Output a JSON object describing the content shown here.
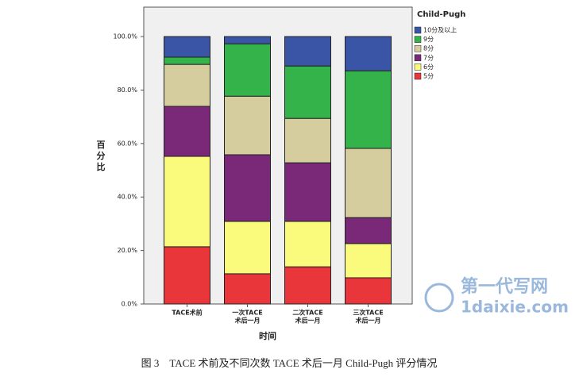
{
  "chart_data": {
    "type": "stacked_bar",
    "x_label": "时间",
    "y_label": "百分比",
    "legend_title": "Child-Pugh",
    "legend": "right",
    "categories": [
      [
        "TACE术前"
      ],
      [
        "一次TACE",
        "术后一月"
      ],
      [
        "二次TACE",
        "术后一月"
      ],
      [
        "三次TACE",
        "术后一月"
      ]
    ],
    "series": [
      {
        "name": "5分",
        "color": "#e8363a",
        "values": [
          21.4,
          11.3,
          13.9,
          9.8
        ]
      },
      {
        "name": "6分",
        "color": "#fafa7c",
        "values": [
          33.8,
          19.6,
          17.0,
          12.8
        ]
      },
      {
        "name": "7分",
        "color": "#7a2878",
        "values": [
          18.7,
          24.9,
          21.9,
          9.7
        ]
      },
      {
        "name": "8分",
        "color": "#d6cd9e",
        "values": [
          15.7,
          21.9,
          16.6,
          25.9
        ]
      },
      {
        "name": "9分",
        "color": "#34b34a",
        "values": [
          2.7,
          19.6,
          19.6,
          29.0
        ]
      },
      {
        "name": "10分及以上",
        "color": "#3a55a6",
        "values": [
          7.7,
          2.7,
          11.0,
          12.8
        ]
      }
    ],
    "ylim": [
      0,
      111
    ],
    "yticks": [
      {
        "value": 0,
        "label": "0.0%"
      },
      {
        "value": 20,
        "label": "20.0%"
      },
      {
        "value": 40,
        "label": "40.0%"
      },
      {
        "value": 60,
        "label": "60.0%"
      },
      {
        "value": 80,
        "label": "80.0%"
      },
      {
        "value": 100,
        "label": "100.0%"
      }
    ]
  },
  "caption": "图 3　TACE 术前及不同次数 TACE 术后一月 Child-Pugh 评分情况",
  "watermark": {
    "name": "第一代写网",
    "url": "1daixie.com"
  }
}
